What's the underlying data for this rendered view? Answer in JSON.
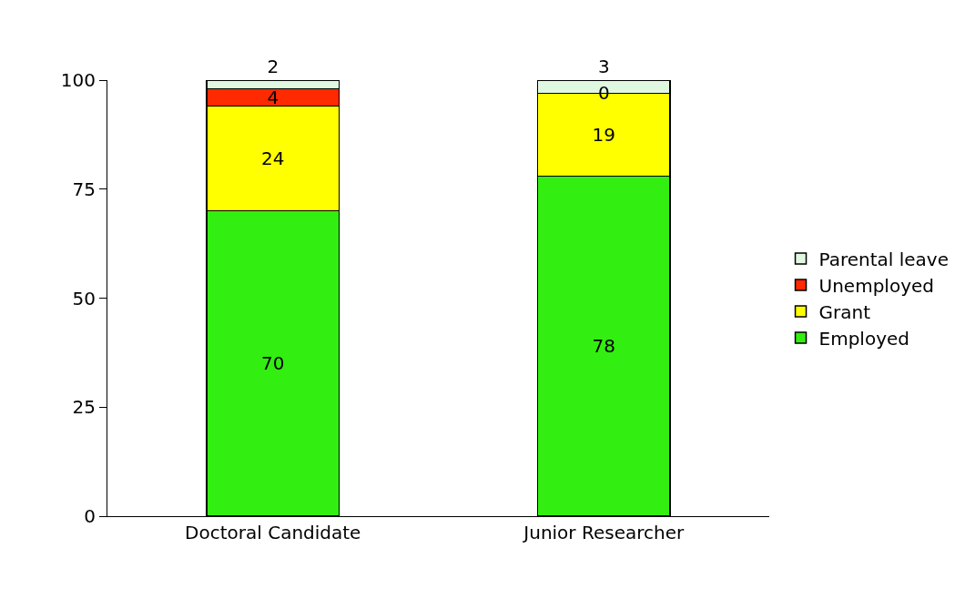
{
  "chart_data": {
    "type": "bar",
    "stacked": true,
    "categories": [
      "Doctoral Candidate",
      "Junior Researcher"
    ],
    "series": [
      {
        "name": "Employed",
        "color": "#33ee11",
        "values": [
          70,
          78
        ]
      },
      {
        "name": "Grant",
        "color": "#ffff00",
        "values": [
          24,
          19
        ]
      },
      {
        "name": "Unemployed",
        "color": "#ff2a00",
        "values": [
          4,
          0
        ]
      },
      {
        "name": "Parental leave",
        "color": "#e0f8e0",
        "values": [
          2,
          3
        ]
      }
    ],
    "ylim": [
      0,
      100
    ],
    "yticks": [
      0,
      25,
      50,
      75,
      100
    ],
    "grid": false,
    "legend": "right",
    "data_labels": true
  }
}
